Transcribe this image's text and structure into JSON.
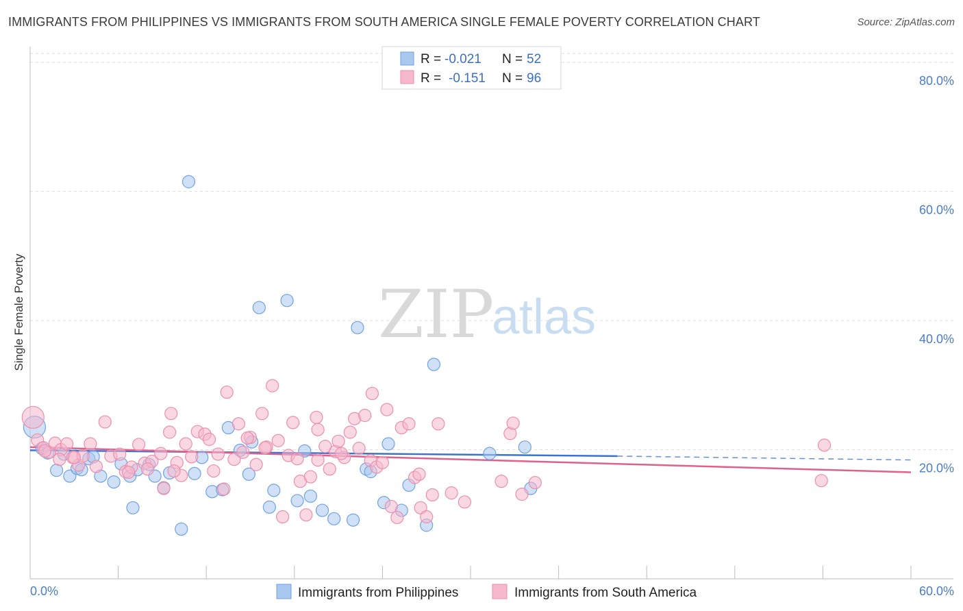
{
  "header": {
    "title": "IMMIGRANTS FROM PHILIPPINES VS IMMIGRANTS FROM SOUTH AMERICA SINGLE FEMALE POVERTY CORRELATION CHART",
    "source": "Source: ZipAtlas.com"
  },
  "watermark": {
    "zip": "ZIP",
    "atlas": "atlas"
  },
  "legend": {
    "r_label": "R =",
    "n_label": "N =",
    "items": [
      {
        "r": "-0.021",
        "n": "52",
        "color": "#a9c8f0"
      },
      {
        "r": "-0.151",
        "n": "96",
        "color": "#f6b8cc"
      }
    ]
  },
  "bottom_legend": [
    {
      "label": "Immigrants from Philippines",
      "color": "#a9c8f0"
    },
    {
      "label": "Immigrants from South America",
      "color": "#f6b8cc"
    }
  ],
  "chart_data": {
    "type": "scatter",
    "title": "IMMIGRANTS FROM PHILIPPINES VS IMMIGRANTS FROM SOUTH AMERICA SINGLE FEMALE POVERTY CORRELATION CHART",
    "ylabel": "Single Female Poverty",
    "xlabel": "",
    "xlim": [
      0,
      60
    ],
    "ylim": [
      0,
      82
    ],
    "x_tick_labels": [
      "0.0%",
      "60.0%"
    ],
    "y_ticks": [
      20,
      40,
      60,
      80
    ],
    "y_tick_labels": [
      "20.0%",
      "40.0%",
      "60.0%",
      "80.0%"
    ],
    "grid": "horizontal dashed",
    "legend_position": "top-center",
    "series": [
      {
        "name": "Immigrants from Philippines",
        "color": "#6fa1e6",
        "fill": "#a9c8f0",
        "points": [
          [
            0.3,
            23.5
          ],
          [
            0.8,
            20.2
          ],
          [
            1.2,
            19.5
          ],
          [
            1.8,
            16.8
          ],
          [
            2.3,
            19.3
          ],
          [
            2.7,
            15.9
          ],
          [
            3.2,
            17.1
          ],
          [
            3.5,
            16.9
          ],
          [
            4.0,
            18.6
          ],
          [
            4.3,
            18.9
          ],
          [
            4.8,
            15.9
          ],
          [
            5.7,
            15.0
          ],
          [
            6.2,
            17.8
          ],
          [
            6.8,
            15.9
          ],
          [
            7.0,
            11.0
          ],
          [
            7.3,
            16.9
          ],
          [
            8.1,
            17.7
          ],
          [
            8.5,
            15.9
          ],
          [
            9.1,
            14.1
          ],
          [
            9.5,
            16.4
          ],
          [
            10.3,
            7.7
          ],
          [
            10.8,
            61.5
          ],
          [
            11.2,
            16.3
          ],
          [
            11.7,
            18.8
          ],
          [
            12.4,
            13.5
          ],
          [
            13.1,
            13.8
          ],
          [
            13.5,
            23.4
          ],
          [
            14.3,
            19.9
          ],
          [
            14.9,
            16.2
          ],
          [
            15.1,
            21.2
          ],
          [
            15.6,
            42.0
          ],
          [
            16.3,
            11.1
          ],
          [
            16.6,
            13.7
          ],
          [
            17.5,
            43.1
          ],
          [
            18.2,
            12.1
          ],
          [
            18.7,
            19.8
          ],
          [
            19.1,
            12.8
          ],
          [
            19.9,
            10.6
          ],
          [
            20.7,
            9.3
          ],
          [
            22.0,
            9.1
          ],
          [
            22.3,
            38.9
          ],
          [
            22.9,
            17.0
          ],
          [
            23.2,
            16.6
          ],
          [
            24.1,
            11.8
          ],
          [
            24.4,
            20.9
          ],
          [
            25.3,
            10.6
          ],
          [
            25.8,
            14.5
          ],
          [
            27.0,
            8.3
          ],
          [
            27.5,
            33.2
          ],
          [
            31.3,
            19.4
          ],
          [
            33.7,
            20.4
          ],
          [
            34.1,
            14.0
          ]
        ]
      },
      {
        "name": "Immigrants from South America",
        "color": "#ec8eab",
        "fill": "#f6b8cc",
        "points": [
          [
            0.2,
            25.0
          ],
          [
            0.5,
            21.5
          ],
          [
            0.9,
            20.3
          ],
          [
            1.3,
            19.6
          ],
          [
            1.7,
            21.0
          ],
          [
            2.1,
            20.0
          ],
          [
            2.5,
            20.9
          ],
          [
            2.9,
            18.8
          ],
          [
            3.3,
            17.6
          ],
          [
            3.6,
            19.0
          ],
          [
            4.1,
            20.9
          ],
          [
            4.5,
            17.4
          ],
          [
            5.1,
            24.3
          ],
          [
            5.5,
            19.0
          ],
          [
            6.1,
            19.3
          ],
          [
            6.5,
            16.6
          ],
          [
            6.9,
            17.3
          ],
          [
            7.4,
            20.8
          ],
          [
            7.8,
            17.9
          ],
          [
            8.3,
            18.2
          ],
          [
            8.9,
            19.4
          ],
          [
            9.1,
            14.0
          ],
          [
            9.5,
            22.7
          ],
          [
            9.6,
            25.6
          ],
          [
            10.0,
            18.0
          ],
          [
            10.3,
            16.0
          ],
          [
            10.6,
            20.9
          ],
          [
            11.0,
            18.9
          ],
          [
            11.4,
            22.8
          ],
          [
            11.9,
            22.4
          ],
          [
            12.2,
            21.6
          ],
          [
            12.5,
            16.7
          ],
          [
            12.8,
            19.3
          ],
          [
            13.2,
            13.9
          ],
          [
            13.4,
            28.9
          ],
          [
            13.9,
            18.5
          ],
          [
            14.2,
            24.0
          ],
          [
            14.5,
            19.6
          ],
          [
            15.0,
            21.9
          ],
          [
            15.4,
            17.7
          ],
          [
            15.8,
            25.6
          ],
          [
            16.1,
            20.4
          ],
          [
            16.5,
            29.9
          ],
          [
            16.9,
            21.4
          ],
          [
            17.2,
            9.6
          ],
          [
            17.6,
            19.1
          ],
          [
            17.9,
            24.2
          ],
          [
            18.2,
            18.6
          ],
          [
            18.4,
            15.1
          ],
          [
            18.8,
            9.9
          ],
          [
            19.1,
            15.8
          ],
          [
            19.5,
            25.0
          ],
          [
            19.6,
            23.1
          ],
          [
            20.1,
            20.5
          ],
          [
            20.4,
            17.0
          ],
          [
            20.8,
            19.7
          ],
          [
            21.0,
            21.3
          ],
          [
            21.4,
            18.8
          ],
          [
            21.8,
            22.7
          ],
          [
            22.1,
            24.8
          ],
          [
            22.4,
            20.2
          ],
          [
            22.8,
            25.3
          ],
          [
            23.2,
            18.3
          ],
          [
            23.3,
            28.7
          ],
          [
            23.6,
            17.3
          ],
          [
            24.0,
            18.0
          ],
          [
            24.3,
            26.2
          ],
          [
            24.6,
            11.2
          ],
          [
            25.0,
            9.5
          ],
          [
            25.3,
            23.4
          ],
          [
            25.8,
            24.0
          ],
          [
            26.2,
            15.7
          ],
          [
            26.6,
            11.0
          ],
          [
            27.0,
            9.6
          ],
          [
            27.4,
            13.0
          ],
          [
            27.8,
            24.0
          ],
          [
            28.7,
            13.3
          ],
          [
            29.6,
            11.9
          ],
          [
            32.1,
            15.1
          ],
          [
            32.7,
            22.5
          ],
          [
            32.9,
            24.1
          ],
          [
            33.5,
            13.1
          ],
          [
            34.4,
            14.9
          ],
          [
            54.1,
            20.7
          ],
          [
            53.9,
            15.2
          ],
          [
            6.7,
            16.5
          ],
          [
            8.0,
            17.0
          ],
          [
            9.8,
            16.7
          ],
          [
            1.0,
            19.8
          ],
          [
            2.0,
            18.5
          ],
          [
            3.0,
            18.8
          ],
          [
            14.8,
            21.8
          ],
          [
            19.6,
            18.4
          ],
          [
            21.2,
            19.4
          ],
          [
            26.5,
            16.2
          ],
          [
            16.0,
            20.3
          ]
        ]
      }
    ],
    "trend_lines": [
      {
        "series": "Immigrants from Philippines",
        "x": [
          0,
          40
        ],
        "y": [
          19.9,
          19.0
        ],
        "dashed_extension_x": [
          40,
          60
        ],
        "dashed_extension_y": [
          19.0,
          18.4
        ],
        "color": "#3d73cf"
      },
      {
        "series": "Immigrants from South America",
        "x": [
          0,
          60
        ],
        "y": [
          20.4,
          16.5
        ],
        "color": "#e0608d"
      }
    ]
  }
}
